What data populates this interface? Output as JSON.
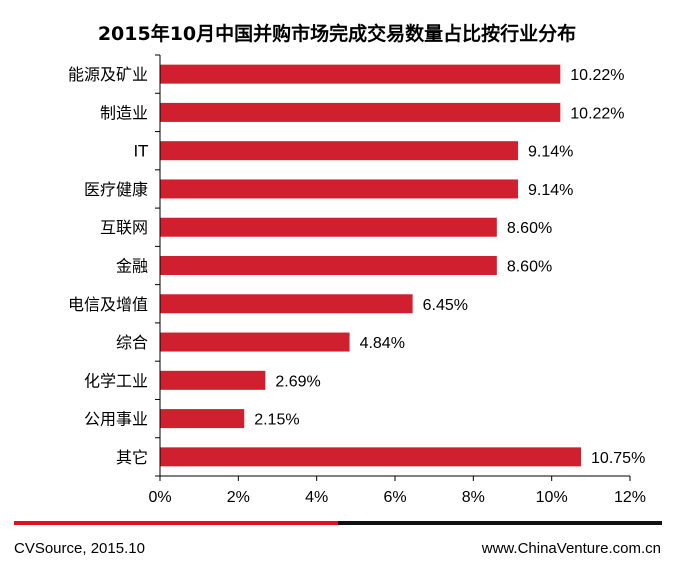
{
  "colors": {
    "bar": "#d01f2e",
    "axis": "#000000",
    "footer_red": "#e0101e",
    "footer_black": "#111111"
  },
  "chart_data": {
    "type": "bar",
    "orientation": "horizontal",
    "title": "2015年10月中国并购市场完成交易数量占比按行业分布",
    "categories": [
      "能源及矿业",
      "制造业",
      "IT",
      "医疗健康",
      "互联网",
      "金融",
      "电信及增值",
      "综合",
      "化学工业",
      "公用事业",
      "其它"
    ],
    "values": [
      10.22,
      10.22,
      9.14,
      9.14,
      8.6,
      8.6,
      6.45,
      4.84,
      2.69,
      2.15,
      10.75
    ],
    "data_labels": [
      "10.22%",
      "10.22%",
      "9.14%",
      "9.14%",
      "8.60%",
      "8.60%",
      "6.45%",
      "4.84%",
      "2.69%",
      "2.15%",
      "10.75%"
    ],
    "x_ticks": [
      "0%",
      "2%",
      "4%",
      "6%",
      "8%",
      "10%",
      "12%"
    ],
    "xlim": [
      0,
      12
    ],
    "grid": false,
    "legend": "none"
  },
  "footer": {
    "source": "CVSource, 2015.10",
    "website": "www.ChinaVenture.com.cn"
  }
}
